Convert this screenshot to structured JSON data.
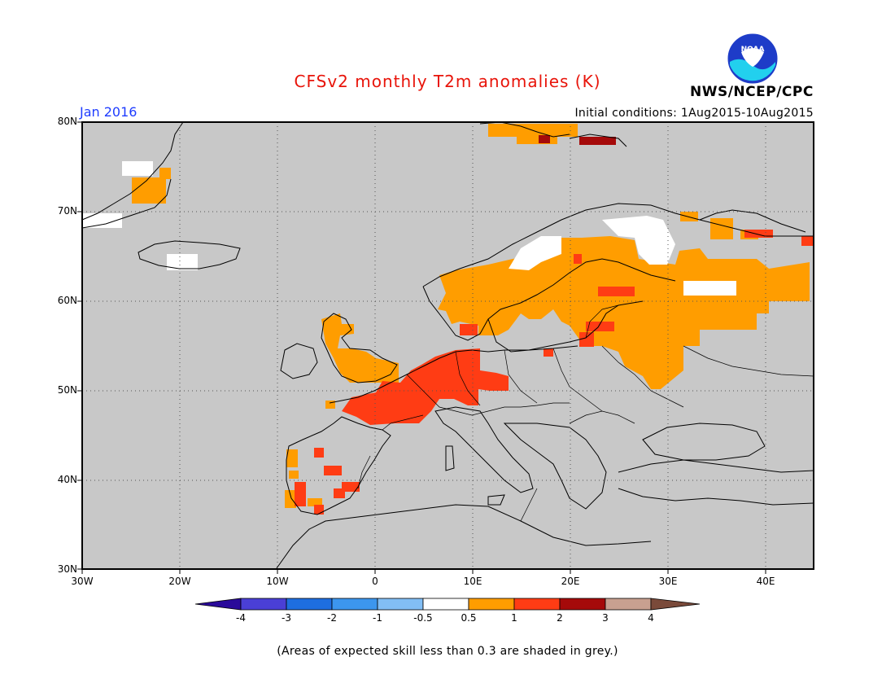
{
  "header": {
    "title": "CFSv2 monthly T2m anomalies (K)",
    "organization": "NWS/NCEP/CPC",
    "logo_text": "NOAA",
    "period": "Jan 2016",
    "initial_conditions": "Initial conditions: 1Aug2015-10Aug2015"
  },
  "map": {
    "lat_labels": [
      "80N",
      "70N",
      "60N",
      "50N",
      "40N",
      "30N"
    ],
    "lon_labels": [
      "30W",
      "20W",
      "10W",
      "0",
      "10E",
      "20E",
      "30E",
      "40E"
    ],
    "background_color": "#c8c8c8",
    "gridlines": "dotted",
    "anomaly_regions": [
      {
        "name": "Greenland coast",
        "level": "0.5-1"
      },
      {
        "name": "Svalbard",
        "level": "0.5-1"
      },
      {
        "name": "Svalbard east",
        "level": "2-3"
      },
      {
        "name": "Scandinavia / Finland",
        "level": "0.5-1"
      },
      {
        "name": "Northern Russia",
        "level": "0.5-1"
      },
      {
        "name": "Western Russia / Baltics",
        "level": "0.5-1"
      },
      {
        "name": "British Isles",
        "level": "0.5-1"
      },
      {
        "name": "France / Benelux / Germany",
        "level": "1-2"
      },
      {
        "name": "Iberia",
        "level": "1-2"
      }
    ]
  },
  "colorbar": {
    "labels": [
      "-4",
      "-3",
      "-2",
      "-1",
      "-0.5",
      "0.5",
      "1",
      "2",
      "3",
      "4"
    ],
    "colors": [
      "#2a0a9a",
      "#4a3fd6",
      "#1e6ee0",
      "#3c96ee",
      "#82bef5",
      "#ffffff",
      "#ff9d00",
      "#ff3c14",
      "#a50a0a",
      "#c8a090",
      "#7a4a3a"
    ]
  },
  "footnote": "(Areas of expected skill less than 0.3 are shaded in grey.)"
}
